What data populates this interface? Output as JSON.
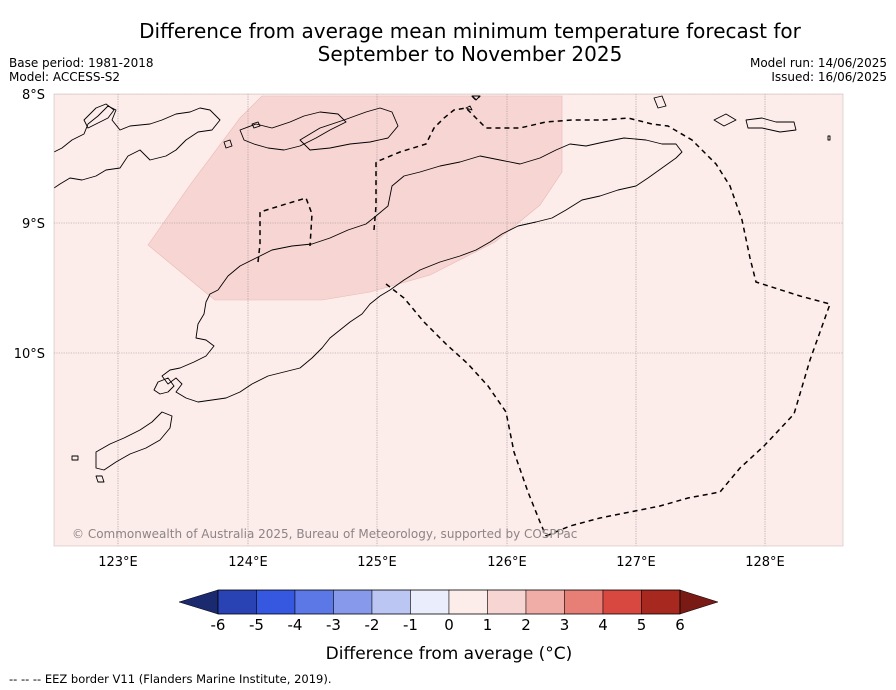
{
  "header": {
    "title_line1": "Difference from average mean minimum temperature forecast for",
    "title_line2": "September to November 2025",
    "base_period": "Base period: 1981-2018",
    "model": "Model: ACCESS-S2",
    "model_run": "Model run: 14/06/2025",
    "issued": "Issued: 16/06/2025"
  },
  "map": {
    "lat_labels": [
      "8°S",
      "9°S",
      "10°S"
    ],
    "lon_labels": [
      "123°E",
      "124°E",
      "125°E",
      "126°E",
      "127°E",
      "128°E"
    ],
    "copyright": "© Commonwealth of Australia 2025, Bureau of Meteorology, supported by COSPPac",
    "background_category": "0 to 1",
    "highlight_category": "1 to 2",
    "colors": {
      "base": "#fcecea",
      "highlight": "#f7d5d3",
      "coast": "#000000",
      "eez": "#000000"
    }
  },
  "legend": {
    "title": "Difference from average (°C)",
    "tick_labels": [
      "-6",
      "-5",
      "-4",
      "-3",
      "-2",
      "-1",
      "0",
      "1",
      "2",
      "3",
      "4",
      "5",
      "6"
    ],
    "colors": [
      "#1b2a6e",
      "#2a43b4",
      "#3658e0",
      "#5c78e6",
      "#8799ea",
      "#bcc6f2",
      "#eaedfb",
      "#fcecea",
      "#f7d5d3",
      "#f0ada8",
      "#e77f77",
      "#d94840",
      "#a6281f",
      "#7a1a15"
    ]
  },
  "footnote": "--  --  -- EEZ border V11 (Flanders Marine Institute, 2019)."
}
